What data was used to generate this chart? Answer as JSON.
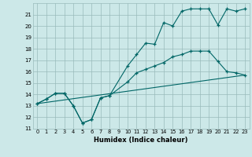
{
  "xlabel": "Humidex (Indice chaleur)",
  "bg_color": "#cce8e8",
  "grid_color": "#99bbbb",
  "line_color": "#006666",
  "xlim": [
    -0.5,
    23.5
  ],
  "ylim": [
    11,
    22
  ],
  "xticks": [
    0,
    1,
    2,
    3,
    4,
    5,
    6,
    7,
    8,
    9,
    10,
    11,
    12,
    13,
    14,
    15,
    16,
    17,
    18,
    19,
    20,
    21,
    22,
    23
  ],
  "yticks": [
    11,
    12,
    13,
    14,
    15,
    16,
    17,
    18,
    19,
    20,
    21
  ],
  "line1_x": [
    0,
    1,
    2,
    3,
    4,
    5,
    6,
    7,
    8,
    10,
    11,
    12,
    13,
    14,
    15,
    16,
    17,
    18,
    19,
    20,
    21,
    22,
    23
  ],
  "line1_y": [
    13.2,
    13.6,
    14.1,
    14.1,
    13.0,
    11.5,
    11.8,
    13.7,
    13.9,
    15.1,
    15.9,
    16.2,
    16.5,
    16.8,
    17.3,
    17.5,
    17.8,
    17.8,
    17.8,
    16.9,
    16.0,
    15.9,
    15.7
  ],
  "line2_x": [
    0,
    1,
    2,
    3,
    4,
    5,
    6,
    7,
    8,
    10,
    11,
    12,
    13,
    14,
    15,
    16,
    17,
    18,
    19,
    20,
    21,
    22,
    23
  ],
  "line2_y": [
    13.2,
    13.6,
    14.1,
    14.1,
    13.0,
    11.5,
    11.8,
    13.7,
    13.9,
    16.5,
    17.5,
    18.5,
    18.4,
    20.3,
    20.0,
    21.3,
    21.5,
    21.5,
    21.5,
    20.1,
    21.5,
    21.3,
    21.5
  ],
  "line3_x": [
    0,
    23
  ],
  "line3_y": [
    13.2,
    15.7
  ]
}
